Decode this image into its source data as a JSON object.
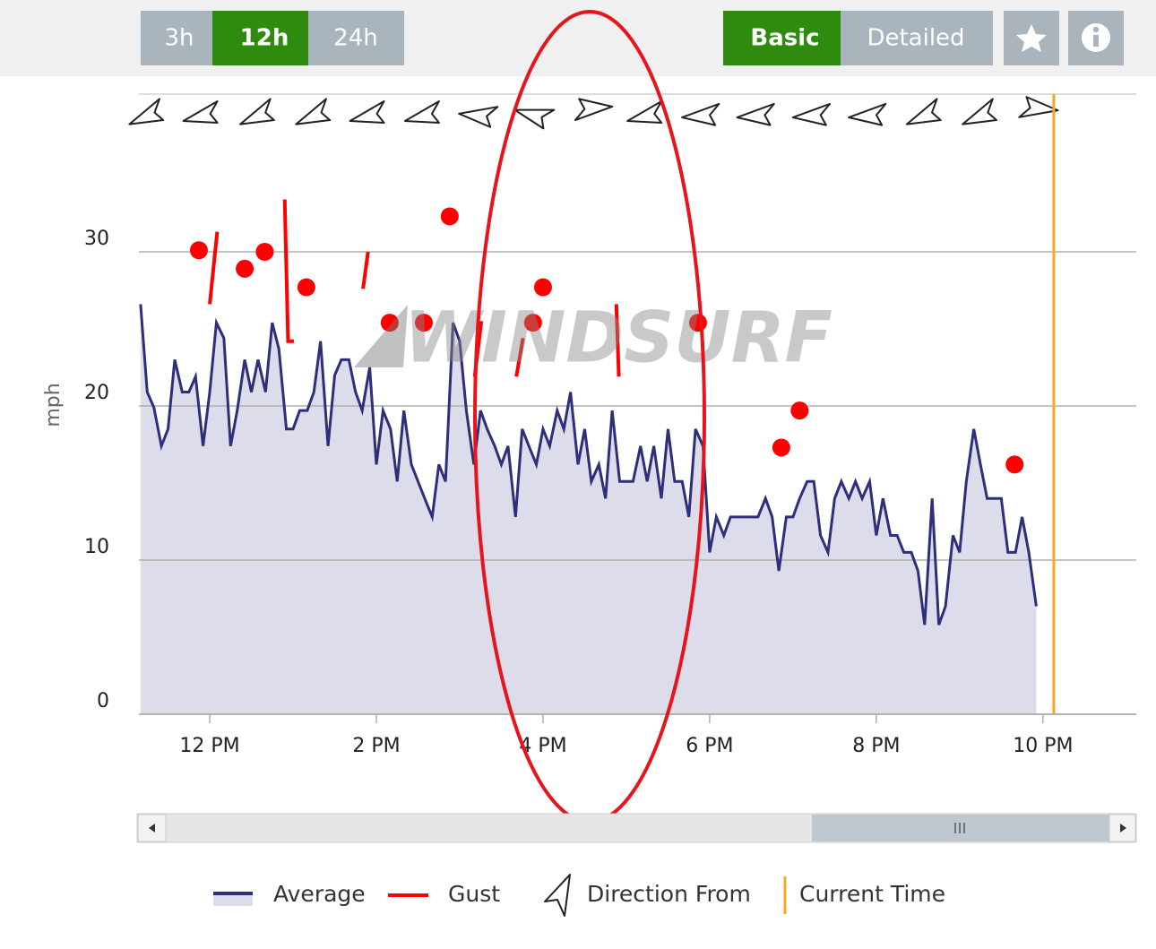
{
  "toolbar": {
    "ranges": [
      "3h",
      "12h",
      "24h"
    ],
    "views": [
      "Basic",
      "Detailed"
    ]
  },
  "watermark": "WINDSURF",
  "chart_data": {
    "type": "line",
    "ylabel": "mph",
    "xlim": [
      11.15,
      23.12
    ],
    "ylim": [
      0,
      40
    ],
    "xticks": [
      {
        "value": 12,
        "label": "12 PM"
      },
      {
        "value": 14,
        "label": "2 PM"
      },
      {
        "value": 16,
        "label": "4 PM"
      },
      {
        "value": 18,
        "label": "6 PM"
      },
      {
        "value": 20,
        "label": "8 PM"
      },
      {
        "value": 22,
        "label": "10 PM"
      }
    ],
    "yticks": [
      0,
      10,
      20,
      30
    ],
    "grid": true,
    "series": [
      {
        "name": "Average",
        "color": "#2e2e7a",
        "fill": "#dcdcea",
        "x": [
          11.17,
          11.25,
          11.33,
          11.42,
          11.5,
          11.58,
          11.67,
          11.75,
          11.83,
          11.92,
          12,
          12.08,
          12.17,
          12.25,
          12.33,
          12.42,
          12.5,
          12.58,
          12.67,
          12.75,
          12.83,
          12.92,
          13,
          13.08,
          13.17,
          13.25,
          13.33,
          13.42,
          13.5,
          13.58,
          13.67,
          13.75,
          13.83,
          13.92,
          14,
          14.08,
          14.17,
          14.25,
          14.33,
          14.42,
          14.5,
          14.58,
          14.67,
          14.75,
          14.83,
          14.92,
          15,
          15.08,
          15.17,
          15.25,
          15.33,
          15.42,
          15.5,
          15.58,
          15.67,
          15.75,
          15.83,
          15.92,
          16,
          16.08,
          16.17,
          16.25,
          16.33,
          16.42,
          16.5,
          16.58,
          16.67,
          16.75,
          16.83,
          16.92,
          17,
          17.08,
          17.17,
          17.25,
          17.33,
          17.42,
          17.5,
          17.58,
          17.67,
          17.75,
          17.83,
          17.92,
          18,
          18.08,
          18.17,
          18.25,
          18.33,
          18.42,
          18.5,
          18.58,
          18.67,
          18.75,
          18.83,
          18.92,
          19,
          19.08,
          19.17,
          19.25,
          19.33,
          19.42,
          19.5,
          19.58,
          19.67,
          19.75,
          19.83,
          19.92,
          20,
          20.08,
          20.17,
          20.25,
          20.33,
          20.42,
          20.5,
          20.58,
          20.67,
          20.75,
          20.83,
          20.92,
          21,
          21.08,
          21.17,
          21.25,
          21.33,
          21.42,
          21.5,
          21.58,
          21.67,
          21.75,
          21.83,
          21.92
        ],
        "values": [
          26.6,
          20.9,
          19.9,
          17.4,
          18.5,
          23,
          20.9,
          20.9,
          21.9,
          17.4,
          20.9,
          25.4,
          24.4,
          17.4,
          19.7,
          23,
          20.9,
          23,
          20.9,
          25.4,
          23.7,
          18.5,
          18.5,
          19.7,
          19.7,
          20.9,
          24.2,
          17.4,
          22,
          23,
          23,
          20.9,
          19.7,
          22.5,
          16.2,
          19.7,
          18.5,
          15.1,
          19.7,
          16.2,
          15.1,
          14,
          12.8,
          16.2,
          15.1,
          25.4,
          24.2,
          19.7,
          16.2,
          19.7,
          18.5,
          17.4,
          16.2,
          17.4,
          12.8,
          18.5,
          17.4,
          16.2,
          18.5,
          17.4,
          19.7,
          18.5,
          20.9,
          16.2,
          18.5,
          15.1,
          16.2,
          14,
          19.7,
          15.1,
          15.1,
          15.1,
          17.4,
          15.1,
          17.4,
          14,
          18.5,
          15.1,
          15.1,
          12.8,
          18.5,
          17.4,
          10.5,
          12.8,
          11.6,
          12.8,
          12.8,
          12.8,
          12.8,
          12.8,
          14,
          12.8,
          9.3,
          12.8,
          12.8,
          14,
          15.1,
          15.1,
          11.6,
          10.5,
          14,
          15.1,
          14,
          15.1,
          14,
          15.1,
          11.6,
          14,
          11.6,
          11.6,
          10.5,
          10.5,
          9.3,
          5.8,
          14,
          5.8,
          7,
          11.6,
          10.5,
          15.1,
          18.5,
          16.2,
          14,
          14,
          14,
          10.5,
          10.5,
          12.8,
          10.5,
          7
        ]
      },
      {
        "name": "Gust",
        "color": "#ff0000",
        "x": [
          11.87,
          null,
          12.0,
          12.09,
          null,
          12.42,
          null,
          12.66,
          null,
          12.9,
          12.94,
          13.01,
          null,
          13.16,
          null,
          13.84,
          13.9,
          null,
          14.16,
          null,
          14.57,
          null,
          14.88,
          null,
          15.18,
          15.26,
          null,
          15.68,
          15.76,
          null,
          15.88,
          null,
          16.0,
          null,
          16.88,
          16.91,
          null,
          17.86,
          null,
          18.86,
          null,
          19.08,
          null,
          21.66
        ],
        "values": [
          30.1,
          null,
          26.6,
          31.3,
          null,
          28.9,
          null,
          30,
          null,
          33.4,
          24.2,
          24.2,
          null,
          27.7,
          null,
          27.6,
          30,
          null,
          25.4,
          null,
          25.4,
          null,
          32.3,
          null,
          21.9,
          25.5,
          null,
          21.9,
          24.4,
          null,
          25.4,
          null,
          27.7,
          null,
          26.6,
          21.9,
          null,
          25.4,
          null,
          17.3,
          null,
          19.7,
          null,
          16.2
        ]
      }
    ],
    "directions": {
      "name": "Direction From",
      "x": [
        11.25,
        11.92,
        12.58,
        13.25,
        13.92,
        14.58,
        15.25,
        15.92,
        16.58,
        17.25,
        17.92,
        18.58,
        19.25,
        19.92,
        20.58,
        21.25,
        21.92
      ],
      "values": [
        240,
        250,
        240,
        240,
        250,
        250,
        270,
        280,
        80,
        250,
        260,
        260,
        260,
        260,
        240,
        240,
        90
      ]
    },
    "current_time": {
      "name": "Current Time",
      "x": 22.13,
      "color": "#f5a623"
    }
  }
}
